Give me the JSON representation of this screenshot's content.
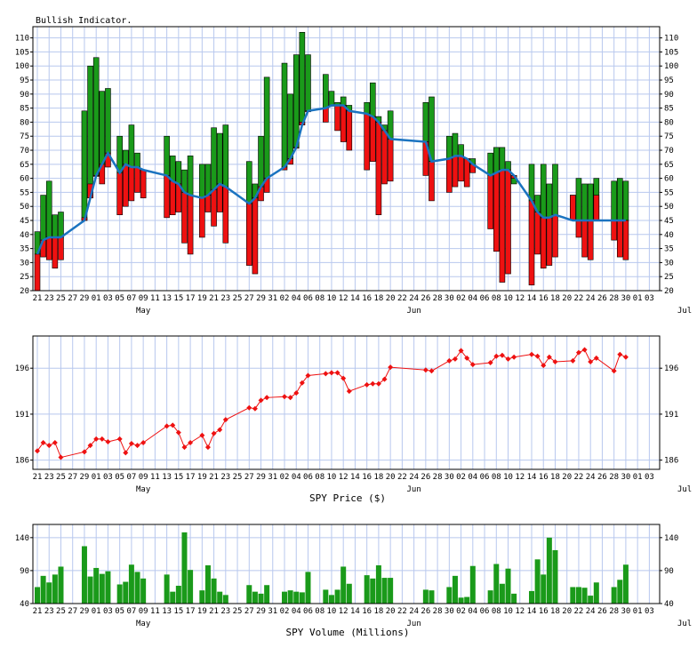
{
  "panels": {
    "indicator": {
      "title": "Bullish Indicator.",
      "yticks": [
        20,
        25,
        30,
        35,
        40,
        45,
        50,
        55,
        60,
        65,
        70,
        75,
        80,
        85,
        90,
        95,
        100,
        105,
        110
      ],
      "ylim": [
        20,
        114
      ]
    },
    "price": {
      "caption": "SPY Price ($)",
      "yticks": [
        186,
        191,
        196
      ],
      "ylim": [
        185,
        199.5
      ]
    },
    "volume": {
      "caption": "SPY Volume (Millions)",
      "yticks": [
        40,
        90,
        140
      ],
      "ylim": [
        40,
        160
      ]
    }
  },
  "x_axis": {
    "day_labels": [
      "21",
      "23",
      "25",
      "27",
      "29",
      "01",
      "03",
      "05",
      "07",
      "09",
      "11",
      "13",
      "15",
      "17",
      "19",
      "21",
      "23",
      "25",
      "27",
      "29",
      "31",
      "02",
      "04",
      "06",
      "08",
      "10",
      "12",
      "14",
      "16",
      "18",
      "20",
      "22",
      "24",
      "26",
      "28",
      "30",
      "02",
      "04",
      "06",
      "08",
      "10",
      "12",
      "14",
      "16",
      "18",
      "20",
      "22",
      "24",
      "26",
      "28",
      "30",
      "01",
      "03"
    ],
    "month_labels": [
      {
        "text": "May",
        "index": 9
      },
      {
        "text": "Jun",
        "index": 32
      },
      {
        "text": "Jul",
        "index": 55
      }
    ]
  },
  "chart_data": [
    {
      "type": "bar",
      "title": "Bullish Indicator.",
      "x_days": [
        0,
        1,
        2,
        3,
        4,
        8,
        9,
        10,
        11,
        12,
        14,
        15,
        16,
        17,
        18,
        22,
        23,
        24,
        25,
        26,
        28,
        29,
        30,
        31,
        32,
        36,
        37,
        38,
        39,
        42,
        43,
        44,
        45,
        46,
        49,
        50,
        51,
        52,
        53,
        56,
        57,
        58,
        59,
        60,
        66,
        67,
        70,
        71,
        72,
        73,
        74,
        77,
        78,
        79,
        80,
        81,
        84,
        85,
        86,
        87,
        88,
        91,
        92,
        93,
        94,
        95,
        98,
        99,
        100
      ],
      "bullish": [
        41,
        54,
        59,
        47,
        48,
        84,
        100,
        103,
        91,
        92,
        75,
        70,
        79,
        69,
        62,
        75,
        68,
        66,
        63,
        68,
        65,
        65,
        78,
        76,
        79,
        66,
        58,
        75,
        96,
        101,
        90,
        104,
        112,
        104,
        97,
        91,
        87,
        89,
        86,
        87,
        94,
        82,
        79,
        84,
        87,
        89,
        75,
        76,
        72,
        67,
        67,
        69,
        71,
        71,
        66,
        58,
        65,
        54,
        65,
        58,
        65,
        54,
        60,
        58,
        58,
        60,
        59,
        60,
        59
      ],
      "bearish": [
        20,
        32,
        31,
        28,
        31,
        46,
        58,
        61,
        58,
        64,
        47,
        50,
        52,
        55,
        53,
        46,
        47,
        48,
        37,
        33,
        39,
        48,
        43,
        48,
        37,
        29,
        26,
        52,
        55,
        63,
        65,
        71,
        80,
        84,
        80,
        86,
        77,
        73,
        70,
        63,
        66,
        47,
        58,
        59,
        61,
        52,
        55,
        57,
        59,
        57,
        62,
        42,
        34,
        23,
        26,
        60,
        22,
        33,
        28,
        29,
        32,
        54,
        39,
        32,
        31,
        54,
        38,
        32,
        31
      ],
      "average": [
        33,
        38,
        39,
        39,
        39,
        45,
        53,
        61,
        65,
        69,
        62,
        65,
        64,
        64,
        63,
        61,
        59,
        58,
        55,
        54,
        53,
        54,
        56,
        58,
        57,
        51,
        53,
        57,
        60,
        64,
        67,
        71,
        79,
        84,
        85,
        86,
        86,
        86,
        84,
        83,
        82,
        80,
        77,
        74,
        73,
        66,
        67,
        68,
        68,
        67,
        65,
        61,
        62,
        63,
        63,
        61,
        52,
        48,
        46,
        46,
        47,
        45,
        45,
        45,
        45,
        45,
        45,
        45,
        45
      ],
      "ylim": [
        20,
        114
      ]
    },
    {
      "type": "line",
      "title": "SPY Price ($)",
      "x_days": [
        0,
        1,
        2,
        3,
        4,
        8,
        9,
        10,
        11,
        12,
        14,
        15,
        16,
        17,
        18,
        22,
        23,
        24,
        25,
        26,
        28,
        29,
        30,
        31,
        32,
        36,
        37,
        38,
        39,
        42,
        43,
        44,
        45,
        46,
        49,
        50,
        51,
        52,
        53,
        56,
        57,
        58,
        59,
        60,
        66,
        67,
        70,
        71,
        72,
        73,
        74,
        77,
        78,
        79,
        80,
        81,
        84,
        85,
        86,
        87,
        88,
        91,
        92,
        93,
        94,
        95,
        98,
        99,
        100
      ],
      "values": [
        187.0,
        187.9,
        187.6,
        187.9,
        186.3,
        186.9,
        187.6,
        188.3,
        188.3,
        188.0,
        188.3,
        186.8,
        187.8,
        187.6,
        187.9,
        189.7,
        189.8,
        189.0,
        187.4,
        187.9,
        188.7,
        187.4,
        188.9,
        189.3,
        190.4,
        191.7,
        191.6,
        192.5,
        192.8,
        192.9,
        192.8,
        193.3,
        194.4,
        195.2,
        195.4,
        195.5,
        195.5,
        194.9,
        193.5,
        194.2,
        194.3,
        194.3,
        194.8,
        196.1,
        195.8,
        195.7,
        196.8,
        197.0,
        197.9,
        197.1,
        196.4,
        196.6,
        197.3,
        197.4,
        197.0,
        197.2,
        197.5,
        197.3,
        196.3,
        197.2,
        196.7,
        196.8,
        197.7,
        198.0,
        196.7,
        197.1,
        195.7,
        197.5,
        197.2
      ],
      "ylim": [
        185,
        199.5
      ]
    },
    {
      "type": "bar",
      "title": "SPY Volume (Millions)",
      "x_days": [
        0,
        1,
        2,
        3,
        4,
        8,
        9,
        10,
        11,
        12,
        14,
        15,
        16,
        17,
        18,
        22,
        23,
        24,
        25,
        26,
        28,
        29,
        30,
        31,
        32,
        36,
        37,
        38,
        39,
        42,
        43,
        44,
        45,
        46,
        49,
        50,
        51,
        52,
        53,
        56,
        57,
        58,
        59,
        60,
        66,
        67,
        70,
        71,
        72,
        73,
        74,
        77,
        78,
        79,
        80,
        81,
        84,
        85,
        86,
        87,
        88,
        91,
        92,
        93,
        94,
        95,
        98,
        99,
        100
      ],
      "values": [
        65,
        82,
        72,
        84,
        96,
        127,
        81,
        94,
        85,
        89,
        69,
        73,
        99,
        88,
        78,
        84,
        58,
        67,
        148,
        91,
        60,
        98,
        78,
        58,
        53,
        68,
        58,
        55,
        68,
        58,
        60,
        58,
        57,
        88,
        61,
        53,
        61,
        96,
        70,
        83,
        78,
        98,
        79,
        79,
        61,
        60,
        65,
        82,
        49,
        50,
        97,
        60,
        100,
        70,
        93,
        55,
        59,
        107,
        84,
        140,
        121,
        65,
        65,
        64,
        52,
        72,
        65,
        76,
        99
      ],
      "ylim": [
        40,
        160
      ]
    }
  ],
  "colors": {
    "bull": "#1a9a1a",
    "bear": "#ee1111",
    "average_line": "#1a73c0",
    "price_line": "#ee1111",
    "grid": "#b8c8ee"
  }
}
